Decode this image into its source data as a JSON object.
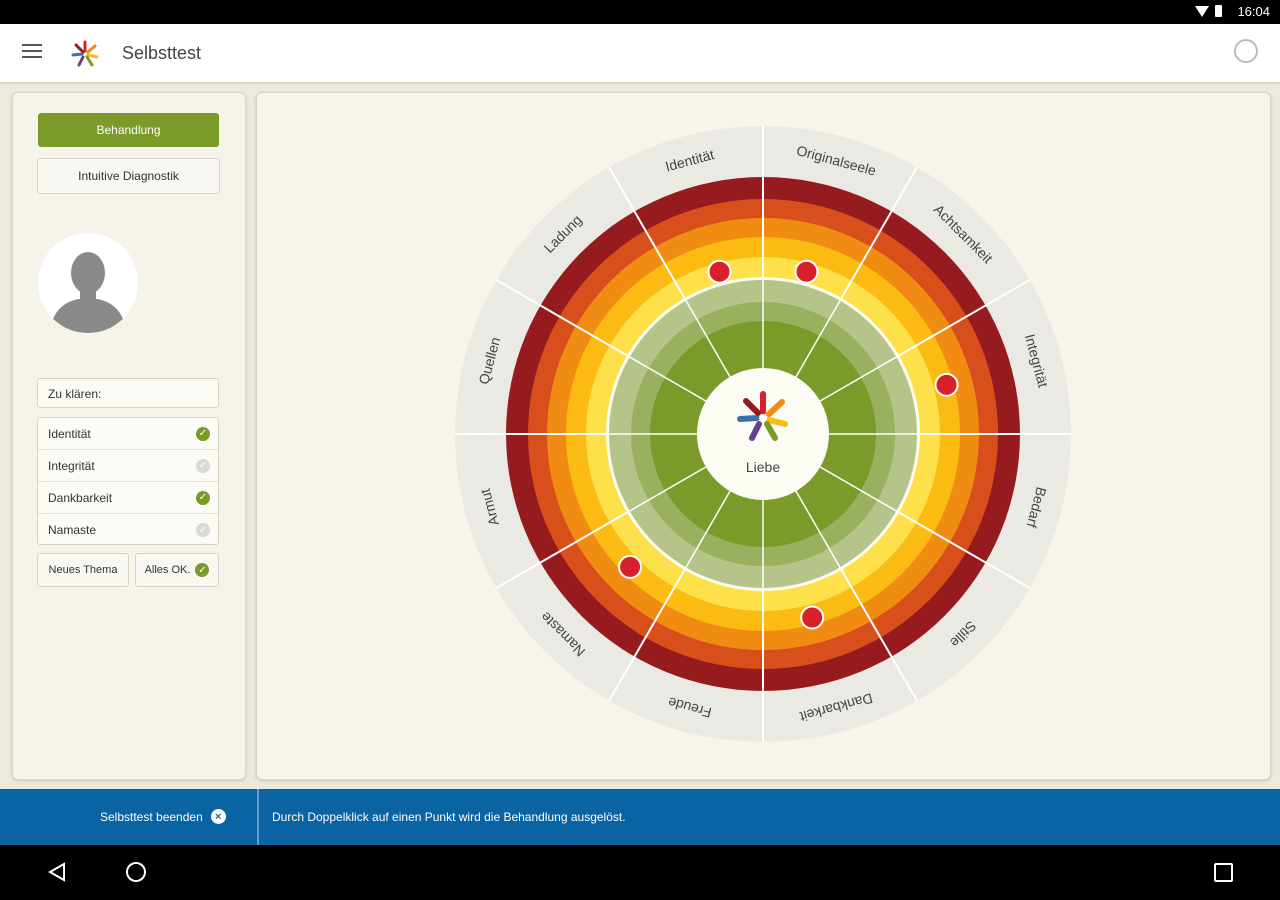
{
  "status_bar": {
    "time": "16:04"
  },
  "app_bar": {
    "title": "Selbsttest"
  },
  "left_panel": {
    "treatment_label": "Behandlung",
    "diagnostic_label": "Intuitive Diagnostik",
    "clarify_label": "Zu klären:",
    "topics": [
      {
        "label": "Identität",
        "checked": true
      },
      {
        "label": "Integrität",
        "checked": false
      },
      {
        "label": "Dankbarkeit",
        "checked": true
      },
      {
        "label": "Namaste",
        "checked": false
      }
    ],
    "new_topic_label": "Neues Thema",
    "all_ok_label": "Alles OK."
  },
  "wheel": {
    "center_label": "Liebe",
    "segments": [
      "Originalseele",
      "Achtsamkeit",
      "Integrität",
      "Bedarf",
      "Stille",
      "Dankbarkeit",
      "Freude",
      "Namaste",
      "Armut",
      "Quellen",
      "Ladung",
      "Identität"
    ],
    "colors": {
      "outer_band": "#ebe9e4",
      "red_dark": "#961b1e",
      "red_orange": "#d94f1c",
      "orange": "#f08c12",
      "amber": "#fbbb12",
      "yellow": "#fde04a",
      "cream": "#fdfcf2",
      "green_light": "#b5c58a",
      "green_mid": "#9bb05e",
      "green_dark": "#7a9a2a",
      "marker": "#d8202a"
    }
  },
  "bottom_bar": {
    "end_test_label": "Selbsttest beenden",
    "hint": "Durch Doppelklick auf einen Punkt wird die Behandlung ausgelöst."
  }
}
